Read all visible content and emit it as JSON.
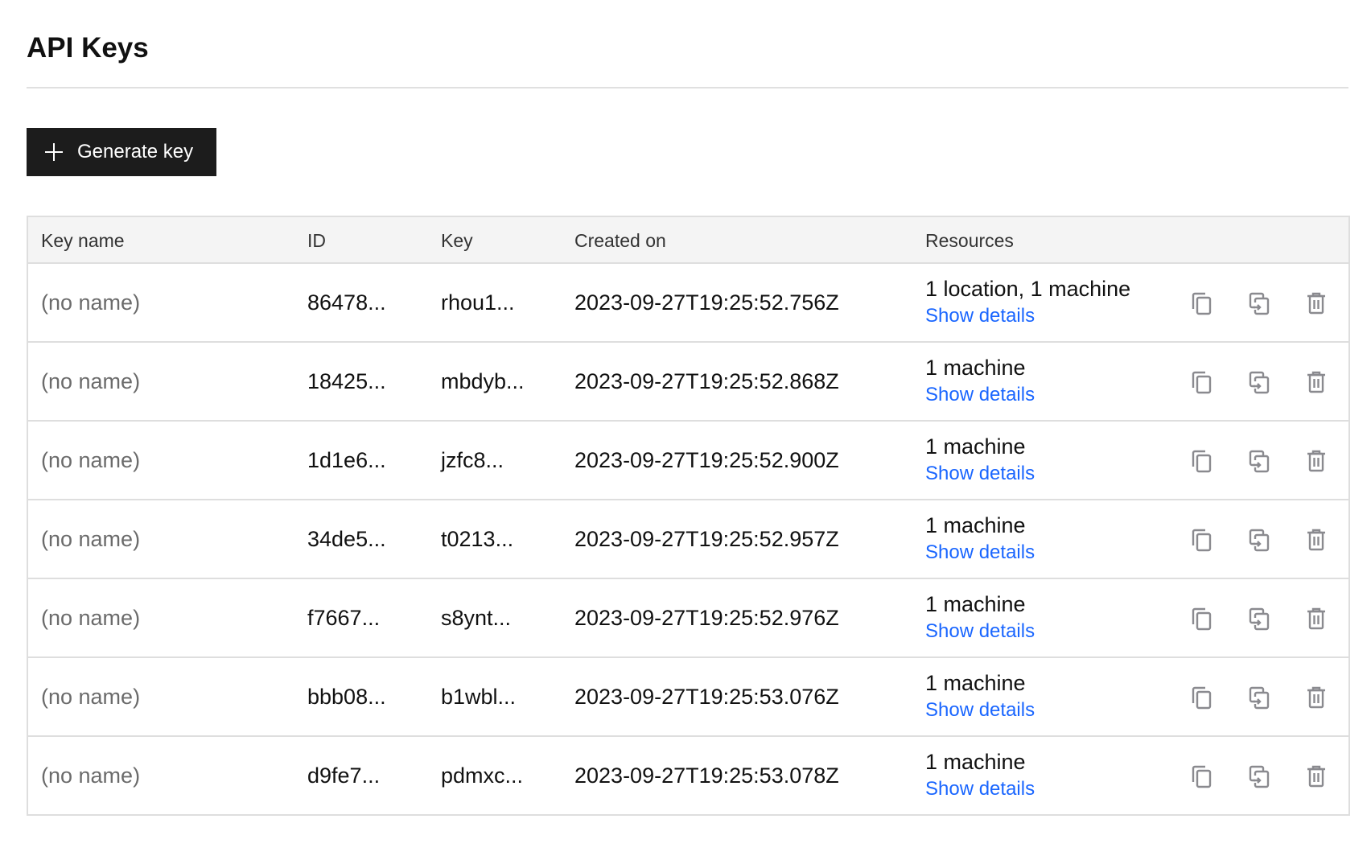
{
  "page": {
    "title": "API Keys"
  },
  "toolbar": {
    "generate_label": "Generate key"
  },
  "table": {
    "headers": [
      "Key name",
      "ID",
      "Key",
      "Created on",
      "Resources"
    ],
    "rows": [
      {
        "name": "(no name)",
        "id": "86478...",
        "key": "rhou1...",
        "created": "2023-09-27T19:25:52.756Z",
        "resources": "1 location, 1 machine",
        "details": "Show details"
      },
      {
        "name": "(no name)",
        "id": "18425...",
        "key": "mbdyb...",
        "created": "2023-09-27T19:25:52.868Z",
        "resources": "1 machine",
        "details": "Show details"
      },
      {
        "name": "(no name)",
        "id": "1d1e6...",
        "key": "jzfc8...",
        "created": "2023-09-27T19:25:52.900Z",
        "resources": "1 machine",
        "details": "Show details"
      },
      {
        "name": "(no name)",
        "id": "34de5...",
        "key": "t0213...",
        "created": "2023-09-27T19:25:52.957Z",
        "resources": "1 machine",
        "details": "Show details"
      },
      {
        "name": "(no name)",
        "id": "f7667...",
        "key": "s8ynt...",
        "created": "2023-09-27T19:25:52.976Z",
        "resources": "1 machine",
        "details": "Show details"
      },
      {
        "name": "(no name)",
        "id": "bbb08...",
        "key": "b1wbl...",
        "created": "2023-09-27T19:25:53.076Z",
        "resources": "1 machine",
        "details": "Show details"
      },
      {
        "name": "(no name)",
        "id": "d9fe7...",
        "key": "pdmxc...",
        "created": "2023-09-27T19:25:53.078Z",
        "resources": "1 machine",
        "details": "Show details"
      }
    ],
    "row_icons": [
      "copy-icon",
      "duplicate-icon",
      "trash-icon"
    ]
  },
  "colors": {
    "link": "#1a66ff",
    "button_bg": "#1c1c1c",
    "icon": "#8a8a8f",
    "header_bg": "#f4f4f4"
  }
}
